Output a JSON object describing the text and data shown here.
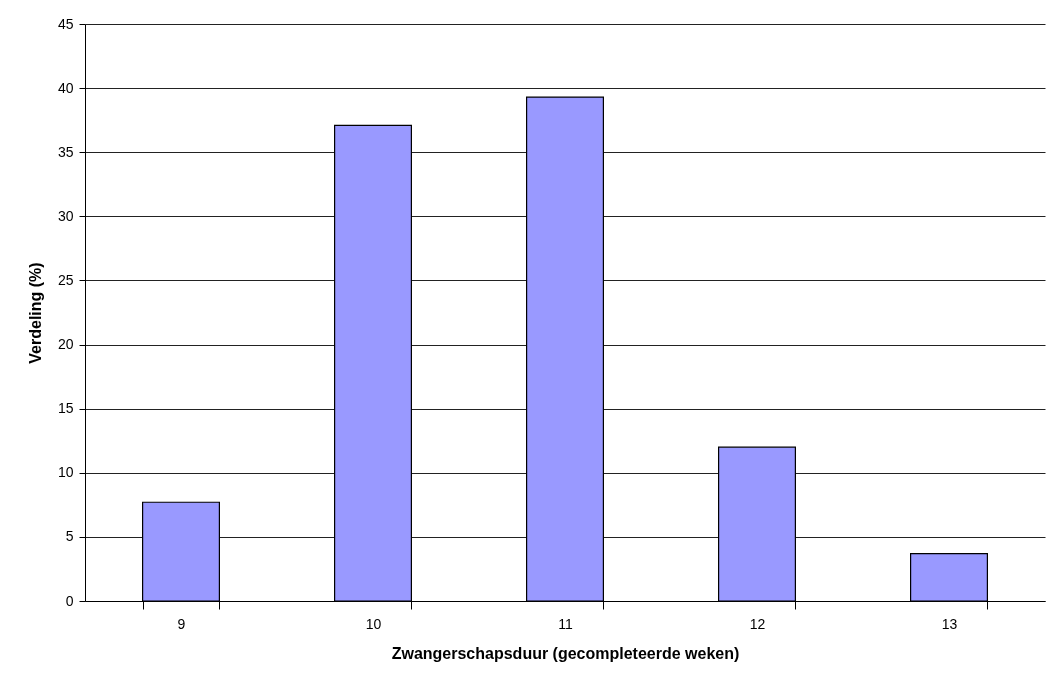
{
  "chart_data": {
    "type": "bar",
    "xlabel": "Zwangerschapsduur (gecompleteerde weken)",
    "ylabel": "Verdeling (%)",
    "categories": [
      "9",
      "10",
      "11",
      "12",
      "13"
    ],
    "values": [
      7.7,
      37.1,
      39.3,
      12.0,
      3.7
    ],
    "color": "#9999ff",
    "ylim": [
      0,
      45
    ],
    "yticks": [
      0,
      5,
      10,
      15,
      20,
      25,
      30,
      35,
      40,
      45
    ],
    "grid": "y"
  }
}
